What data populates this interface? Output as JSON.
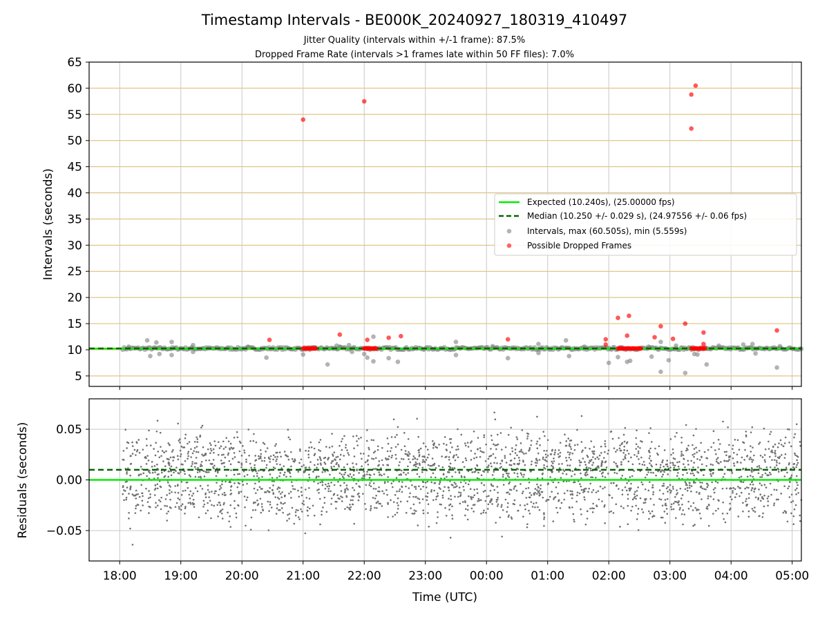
{
  "title": "Timestamp Intervals - BE000K_20240927_180319_410497",
  "subtitle_1": "Jitter Quality (intervals within +/-1 frame): 87.5%",
  "subtitle_2": "Dropped Frame Rate (intervals >1 frames late within 50 FF files): 7.0%",
  "colors": {
    "expected": "#00ee00",
    "median": "#006400",
    "interval_points": "#808080",
    "dropped_points": "#ff0000",
    "top_gridlines": "#d8b868",
    "grid": "#c8c8c8",
    "residual_points": "#707070"
  },
  "chart_data": [
    {
      "type": "scatter",
      "panel": "intervals",
      "ylabel": "Intervals (seconds)",
      "ylim": [
        3,
        65
      ],
      "yticks": [
        5,
        10,
        15,
        20,
        25,
        30,
        35,
        40,
        45,
        50,
        55,
        60,
        65
      ],
      "ytick_labels": [
        "5",
        "10",
        "15",
        "20",
        "25",
        "30",
        "35",
        "40",
        "45",
        "50",
        "55",
        "60",
        "65"
      ],
      "x_unit": "hours since 18:00 UTC",
      "xlim": [
        -0.5,
        11.15
      ],
      "grid": "on",
      "legend_position": "right",
      "legend": [
        "Expected (10.240s), (25.00000 fps)",
        "Median (10.250 +/- 0.029 s), (24.97556 +/- 0.06 fps)",
        "Intervals, max (60.505s), min (5.559s)",
        "Possible Dropped Frames"
      ],
      "expected_line": 10.24,
      "median_line": 10.25,
      "interval_outliers": [
        [
          0.15,
          10.6
        ],
        [
          0.45,
          11.8
        ],
        [
          0.5,
          8.8
        ],
        [
          0.6,
          11.4
        ],
        [
          0.65,
          9.2
        ],
        [
          0.85,
          11.5
        ],
        [
          0.85,
          9.0
        ],
        [
          1.2,
          10.9
        ],
        [
          1.2,
          9.6
        ],
        [
          2.1,
          10.6
        ],
        [
          3.0,
          9.1
        ],
        [
          2.4,
          8.5
        ],
        [
          3.6,
          10.6
        ],
        [
          3.75,
          10.9
        ],
        [
          3.8,
          9.6
        ],
        [
          3.55,
          10.8
        ],
        [
          4.0,
          9.2
        ],
        [
          4.05,
          8.5
        ],
        [
          4.15,
          12.5
        ],
        [
          4.15,
          7.8
        ],
        [
          3.4,
          7.2
        ],
        [
          4.4,
          8.4
        ],
        [
          4.55,
          7.7
        ],
        [
          5.5,
          11.5
        ],
        [
          5.5,
          9.0
        ],
        [
          6.1,
          10.7
        ],
        [
          6.35,
          8.4
        ],
        [
          6.85,
          11.1
        ],
        [
          6.85,
          9.4
        ],
        [
          7.3,
          11.8
        ],
        [
          7.35,
          8.8
        ],
        [
          7.6,
          10.6
        ],
        [
          8.0,
          7.5
        ],
        [
          8.15,
          8.6
        ],
        [
          8.3,
          7.7
        ],
        [
          8.35,
          7.9
        ],
        [
          8.65,
          10.6
        ],
        [
          8.7,
          8.7
        ],
        [
          8.85,
          11.5
        ],
        [
          8.85,
          5.8
        ],
        [
          8.98,
          8.0
        ],
        [
          9.1,
          10.8
        ],
        [
          9.25,
          5.56
        ],
        [
          9.4,
          9.2
        ],
        [
          9.45,
          9.1
        ],
        [
          9.6,
          7.2
        ],
        [
          9.8,
          10.8
        ],
        [
          10.2,
          11.0
        ],
        [
          10.35,
          11.1
        ],
        [
          10.4,
          9.3
        ],
        [
          10.75,
          6.6
        ],
        [
          10.8,
          10.7
        ]
      ],
      "dropped_frames": [
        [
          2.45,
          11.9
        ],
        [
          3.0,
          54.0
        ],
        [
          3.05,
          10.25
        ],
        [
          3.1,
          10.25
        ],
        [
          3.15,
          10.25
        ],
        [
          3.2,
          10.25
        ],
        [
          3.6,
          12.9
        ],
        [
          4.05,
          11.9
        ],
        [
          4.05,
          10.25
        ],
        [
          4.1,
          10.25
        ],
        [
          4.2,
          10.25
        ],
        [
          4.4,
          12.3
        ],
        [
          4.6,
          12.6
        ],
        [
          4.0,
          57.5
        ],
        [
          6.35,
          12.0
        ],
        [
          7.95,
          12.0
        ],
        [
          7.95,
          11.0
        ],
        [
          8.15,
          16.1
        ],
        [
          8.2,
          10.25
        ],
        [
          8.3,
          10.25
        ],
        [
          8.4,
          10.25
        ],
        [
          8.5,
          10.25
        ],
        [
          8.3,
          12.7
        ],
        [
          8.33,
          16.5
        ],
        [
          8.75,
          12.4
        ],
        [
          8.85,
          14.5
        ],
        [
          9.05,
          12.1
        ],
        [
          9.25,
          15.0
        ],
        [
          9.35,
          58.8
        ],
        [
          9.35,
          52.3
        ],
        [
          9.42,
          60.5
        ],
        [
          9.4,
          10.25
        ],
        [
          9.5,
          10.25
        ],
        [
          9.55,
          13.3
        ],
        [
          9.55,
          11.1
        ],
        [
          10.75,
          13.7
        ]
      ]
    },
    {
      "type": "scatter",
      "panel": "residuals",
      "ylabel": "Residuals (seconds)",
      "xlabel": "Time (UTC)",
      "ylim": [
        -0.08,
        0.08
      ],
      "yticks": [
        -0.05,
        0.0,
        0.05
      ],
      "ytick_labels": [
        "−0.05",
        "0.00",
        "0.05"
      ],
      "xticks": [
        0,
        1,
        2,
        3,
        4,
        5,
        6,
        7,
        8,
        9,
        10,
        11
      ],
      "xtick_labels": [
        "18:00",
        "19:00",
        "20:00",
        "21:00",
        "22:00",
        "23:00",
        "00:00",
        "01:00",
        "02:00",
        "03:00",
        "04:00",
        "05:00"
      ],
      "xlim": [
        -0.5,
        11.15
      ],
      "data_range_x": [
        0.05,
        11.15
      ],
      "expected_line": 0.0,
      "median_line": 0.01,
      "point_count": 2600,
      "distribution": "two bands around +0.02 and -0.02, spread approx -0.07 to +0.08",
      "grid": "on"
    }
  ]
}
